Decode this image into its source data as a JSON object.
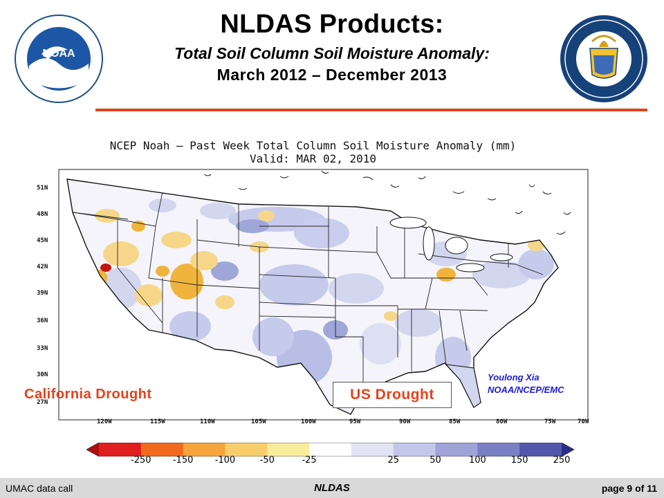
{
  "header": {
    "title": "NLDAS Products:",
    "subtitle": "Total Soil Column Soil Moisture Anomaly:",
    "date_range": "March 2012 – December 2013"
  },
  "map": {
    "title_line1": "NCEP Noah — Past Week Total Column Soil Moisture Anomaly (mm)",
    "title_line2": "Valid: MAR 02, 2010",
    "lat_labels": [
      "51N",
      "48N",
      "45N",
      "42N",
      "39N",
      "36N",
      "33N",
      "30N",
      "27N"
    ],
    "lon_labels": [
      "120W",
      "115W",
      "110W",
      "105W",
      "100W",
      "95W",
      "90W",
      "85W",
      "80W",
      "75W",
      "70W"
    ],
    "credit_line1": "Youlong Xia",
    "credit_line2": "NOAA/NCEP/EMC",
    "region_labels": {
      "california": "California Drought",
      "us": "US Drought"
    },
    "colors": {
      "dry_strong": "#c71414",
      "dry": "#f0b43c",
      "dry_light": "#f6d78a",
      "wet_light": "#d2d6ef",
      "wet": "#9fa6d8",
      "wet_strong": "#5a63b3"
    }
  },
  "colorbar": {
    "labels": [
      "-250",
      "-150",
      "-100",
      "-50",
      "-25",
      "25",
      "50",
      "100",
      "150",
      "250"
    ],
    "colors": [
      "#b30d0d",
      "#e01f1f",
      "#f26a1c",
      "#f6a43c",
      "#f7ce6b",
      "#f9ec9c",
      "#ffffff",
      "#e2e4f4",
      "#c3c7ea",
      "#9ea3d8",
      "#7a7fc4",
      "#5257ac",
      "#2a2d86"
    ]
  },
  "footer": {
    "left": "UMAC data call",
    "center": "NLDAS",
    "right": "page 9 of 11"
  }
}
